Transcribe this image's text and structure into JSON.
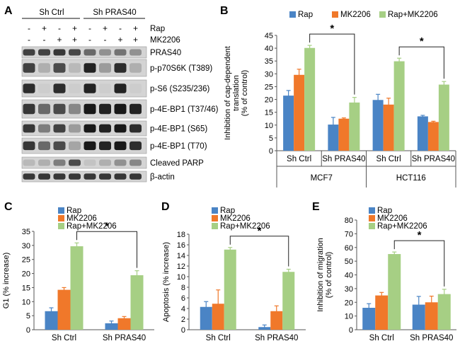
{
  "panels": {
    "A": {
      "letter": "A",
      "groups": [
        "Sh Ctrl",
        "Sh PRAS40"
      ],
      "treatments": [
        {
          "name": "Rap",
          "signs": [
            "-",
            "+",
            "-",
            "+",
            "-",
            "+",
            "-",
            "+"
          ]
        },
        {
          "name": "MK2206",
          "signs": [
            "-",
            "-",
            "+",
            "+",
            "-",
            "-",
            "+",
            "+"
          ]
        }
      ],
      "bands": [
        {
          "label": "PRAS40",
          "intensity": [
            0.75,
            0.75,
            0.8,
            0.72,
            0.55,
            0.35,
            0.5,
            0.35
          ]
        },
        {
          "label": "p-p70S6K (T389)",
          "intensity": [
            0.75,
            0.2,
            0.7,
            0.15,
            0.9,
            0.3,
            0.85,
            0.2
          ]
        },
        {
          "label": "p-S6 (S235/236)",
          "intensity": [
            0.85,
            0.05,
            0.85,
            0.05,
            0.9,
            0.05,
            0.9,
            0.05
          ]
        },
        {
          "label": "p-4E-BP1 (T37/46)",
          "intensity": [
            0.8,
            0.55,
            0.7,
            0.4,
            0.95,
            0.9,
            0.95,
            0.9
          ]
        },
        {
          "label": "p-4E-BP1 (S65)",
          "intensity": [
            0.8,
            0.45,
            0.75,
            0.3,
            0.95,
            0.9,
            0.95,
            0.85
          ]
        },
        {
          "label": "p-4E-BP1 (T70)",
          "intensity": [
            0.8,
            0.55,
            0.7,
            0.25,
            0.95,
            0.9,
            0.95,
            0.85
          ]
        },
        {
          "label": "Cleaved PARP",
          "intensity": [
            0.15,
            0.2,
            0.45,
            0.7,
            0.1,
            0.2,
            0.35,
            0.4
          ]
        },
        {
          "label": "β-actin",
          "intensity": [
            0.8,
            0.8,
            0.8,
            0.8,
            0.8,
            0.8,
            0.8,
            0.8
          ]
        }
      ]
    },
    "B": {
      "letter": "B",
      "legend": [
        "Rap",
        "MK2206",
        "Rap+MK2206"
      ],
      "sig": [
        "*",
        "*"
      ],
      "chart_data": {
        "type": "bar",
        "ylabel": "Inhibition of cap-dependent translation (% of control)",
        "ylabel_lines": [
          "Inhibition of cap-dependent",
          "translation",
          "(% of control)"
        ],
        "ylim": [
          0,
          45
        ],
        "yticks": [
          0,
          5,
          10,
          15,
          20,
          25,
          30,
          35,
          40,
          45
        ],
        "categories": [
          "Sh Ctrl",
          "Sh PRAS40",
          "Sh Ctrl",
          "Sh PRAS40"
        ],
        "cell_lines": [
          "MCF7",
          "HCT116"
        ],
        "series": [
          {
            "name": "Rap",
            "color": "#4a84c5",
            "values": [
              21.5,
              10.2,
              19.8,
              13.4
            ],
            "errors": [
              2.0,
              2.8,
              2.2,
              0.4
            ]
          },
          {
            "name": "MK2206",
            "color": "#f0782a",
            "values": [
              29.6,
              12.5,
              18.0,
              11.2
            ],
            "errors": [
              2.2,
              0.3,
              2.5,
              0.3
            ]
          },
          {
            "name": "Rap+MK2206",
            "color": "#a6cf84",
            "values": [
              40.1,
              18.8,
              34.9,
              25.8
            ],
            "errors": [
              1.0,
              2.0,
              1.2,
              1.2
            ]
          }
        ],
        "annotations": [
          {
            "text": "*",
            "from": [
              0,
              2
            ],
            "to": [
              1,
              2
            ]
          },
          {
            "text": "*",
            "from": [
              2,
              2
            ],
            "to": [
              3,
              2
            ]
          }
        ]
      }
    },
    "C": {
      "letter": "C",
      "legend": [
        "Rap",
        "MK2206",
        "Rap+MK2206"
      ],
      "sig": "*",
      "chart_data": {
        "type": "bar",
        "ylabel": "G1 (% increase)",
        "ylim": [
          0,
          35
        ],
        "yticks": [
          0,
          5,
          10,
          15,
          20,
          25,
          30,
          35
        ],
        "categories": [
          "Sh Ctrl",
          "Sh PRAS40"
        ],
        "series": [
          {
            "name": "Rap",
            "color": "#4a84c5",
            "values": [
              6.6,
              2.3
            ],
            "errors": [
              1.2,
              0.8
            ]
          },
          {
            "name": "MK2206",
            "color": "#f0782a",
            "values": [
              14.2,
              4.1
            ],
            "errors": [
              0.8,
              0.6
            ]
          },
          {
            "name": "Rap+MK2206",
            "color": "#a6cf84",
            "values": [
              29.7,
              19.4
            ],
            "errors": [
              1.2,
              1.6
            ]
          }
        ],
        "annotations": [
          {
            "text": "*",
            "from": [
              0,
              2
            ],
            "to": [
              1,
              2
            ]
          }
        ]
      }
    },
    "D": {
      "letter": "D",
      "legend": [
        "Rap",
        "MK2206",
        "Rap+MK2206"
      ],
      "sig": "*",
      "chart_data": {
        "type": "bar",
        "ylabel": "Apoptosis (% increase)",
        "ylim": [
          0,
          18
        ],
        "yticks": [
          0,
          2,
          4,
          6,
          8,
          10,
          12,
          14,
          16,
          18
        ],
        "categories": [
          "Sh Ctrl",
          "Sh PRAS40"
        ],
        "series": [
          {
            "name": "Rap",
            "color": "#4a84c5",
            "values": [
              4.3,
              0.5
            ],
            "errors": [
              1.0,
              0.4
            ]
          },
          {
            "name": "MK2206",
            "color": "#f0782a",
            "values": [
              4.9,
              3.5
            ],
            "errors": [
              2.6,
              1.0
            ]
          },
          {
            "name": "Rap+MK2206",
            "color": "#a6cf84",
            "values": [
              15.1,
              10.9
            ],
            "errors": [
              0.4,
              0.5
            ]
          }
        ],
        "annotations": [
          {
            "text": "*",
            "from": [
              0,
              2
            ],
            "to": [
              1,
              2
            ]
          }
        ]
      }
    },
    "E": {
      "letter": "E",
      "legend": [
        "Rap",
        "MK2206",
        "Rap+MK2206"
      ],
      "sig": "*",
      "chart_data": {
        "type": "bar",
        "ylabel": "Inhibition of migration (% of control)",
        "ylabel_lines": [
          "Inhibition of migration",
          "(% of control)"
        ],
        "ylim": [
          0,
          80
        ],
        "yticks": [
          0,
          10,
          20,
          30,
          40,
          50,
          60,
          70,
          80
        ],
        "categories": [
          "Sh Ctrl",
          "Sh PRAS40"
        ],
        "series": [
          {
            "name": "Rap",
            "color": "#4a84c5",
            "values": [
              16.0,
              18.3
            ],
            "errors": [
              3.0,
              6.0
            ]
          },
          {
            "name": "MK2206",
            "color": "#f0782a",
            "values": [
              25.0,
              20.0
            ],
            "errors": [
              2.2,
              4.5
            ]
          },
          {
            "name": "Rap+MK2206",
            "color": "#a6cf84",
            "values": [
              55.2,
              26.0
            ],
            "errors": [
              1.5,
              3.5
            ]
          }
        ],
        "annotations": [
          {
            "text": "*",
            "from": [
              0,
              2
            ],
            "to": [
              1,
              2
            ]
          }
        ]
      }
    }
  }
}
